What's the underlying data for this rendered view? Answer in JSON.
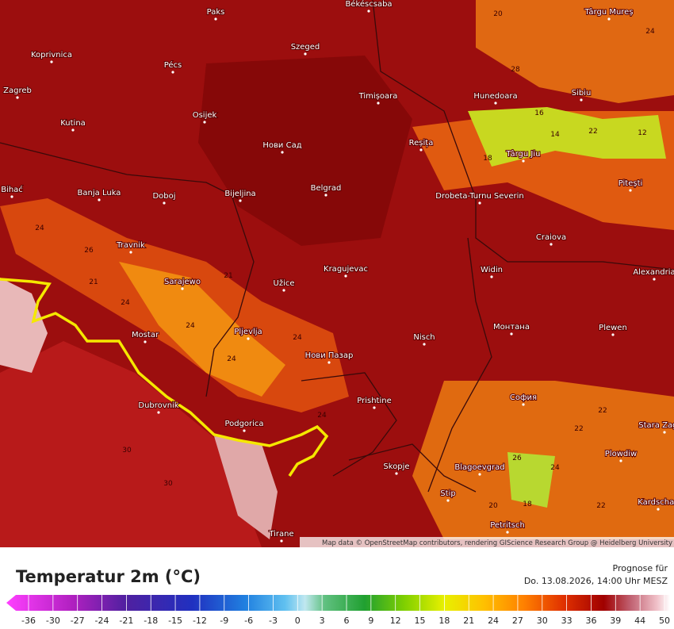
{
  "map": {
    "cities": [
      "Paks",
      "Békéscsaba",
      "Szeged",
      "Koprivnica",
      "Pécs",
      "Zagreb",
      "Osijek",
      "Timișoara",
      "Hunedoara",
      "Sibiu",
      "Târgu Mureș",
      "Kutina",
      "Нови Сад",
      "Reșița",
      "Târgu Jiu",
      "Pitești",
      "Bihać",
      "Banja Luka",
      "Doboj",
      "Bijeljina",
      "Belgrad",
      "Drobeta-Turnu Severin",
      "Craiova",
      "Travnik",
      "Kragujevac",
      "Widin",
      "Alexandria",
      "Sarajewo",
      "Užice",
      "Pljevlja",
      "Mostar",
      "Nisch",
      "Монтана",
      "Plewen",
      "Нови Пазар",
      "Dubrovnik",
      "Prishtine",
      "София",
      "Podgorica",
      "Stara Zagora",
      "Skopje",
      "Blagoevgrad",
      "Plowdiw",
      "Stip",
      "Kardschali",
      "Petritsch",
      "Tirane"
    ],
    "contour_labels": [
      "20",
      "24",
      "28",
      "16",
      "18",
      "22",
      "14",
      "12",
      "24",
      "26",
      "21",
      "24",
      "24",
      "21",
      "24",
      "24",
      "22",
      "26",
      "18",
      "24",
      "20",
      "22",
      "30",
      "30",
      "24",
      "22"
    ],
    "attribution": "Map data © OpenStreetMap contributors, rendering GIScience Research Group @ Heidelberg University"
  },
  "legend": {
    "title": "Temperatur 2m (°C)",
    "forecast_label": "Prognose für",
    "forecast_time": "Do. 13.08.2026, 14:00 Uhr MESZ",
    "ticks": [
      -36,
      -30,
      -27,
      -24,
      -21,
      -18,
      -15,
      -12,
      -9,
      -6,
      -3,
      0,
      3,
      6,
      9,
      12,
      15,
      18,
      21,
      24,
      27,
      30,
      33,
      36,
      39,
      44,
      50
    ]
  }
}
